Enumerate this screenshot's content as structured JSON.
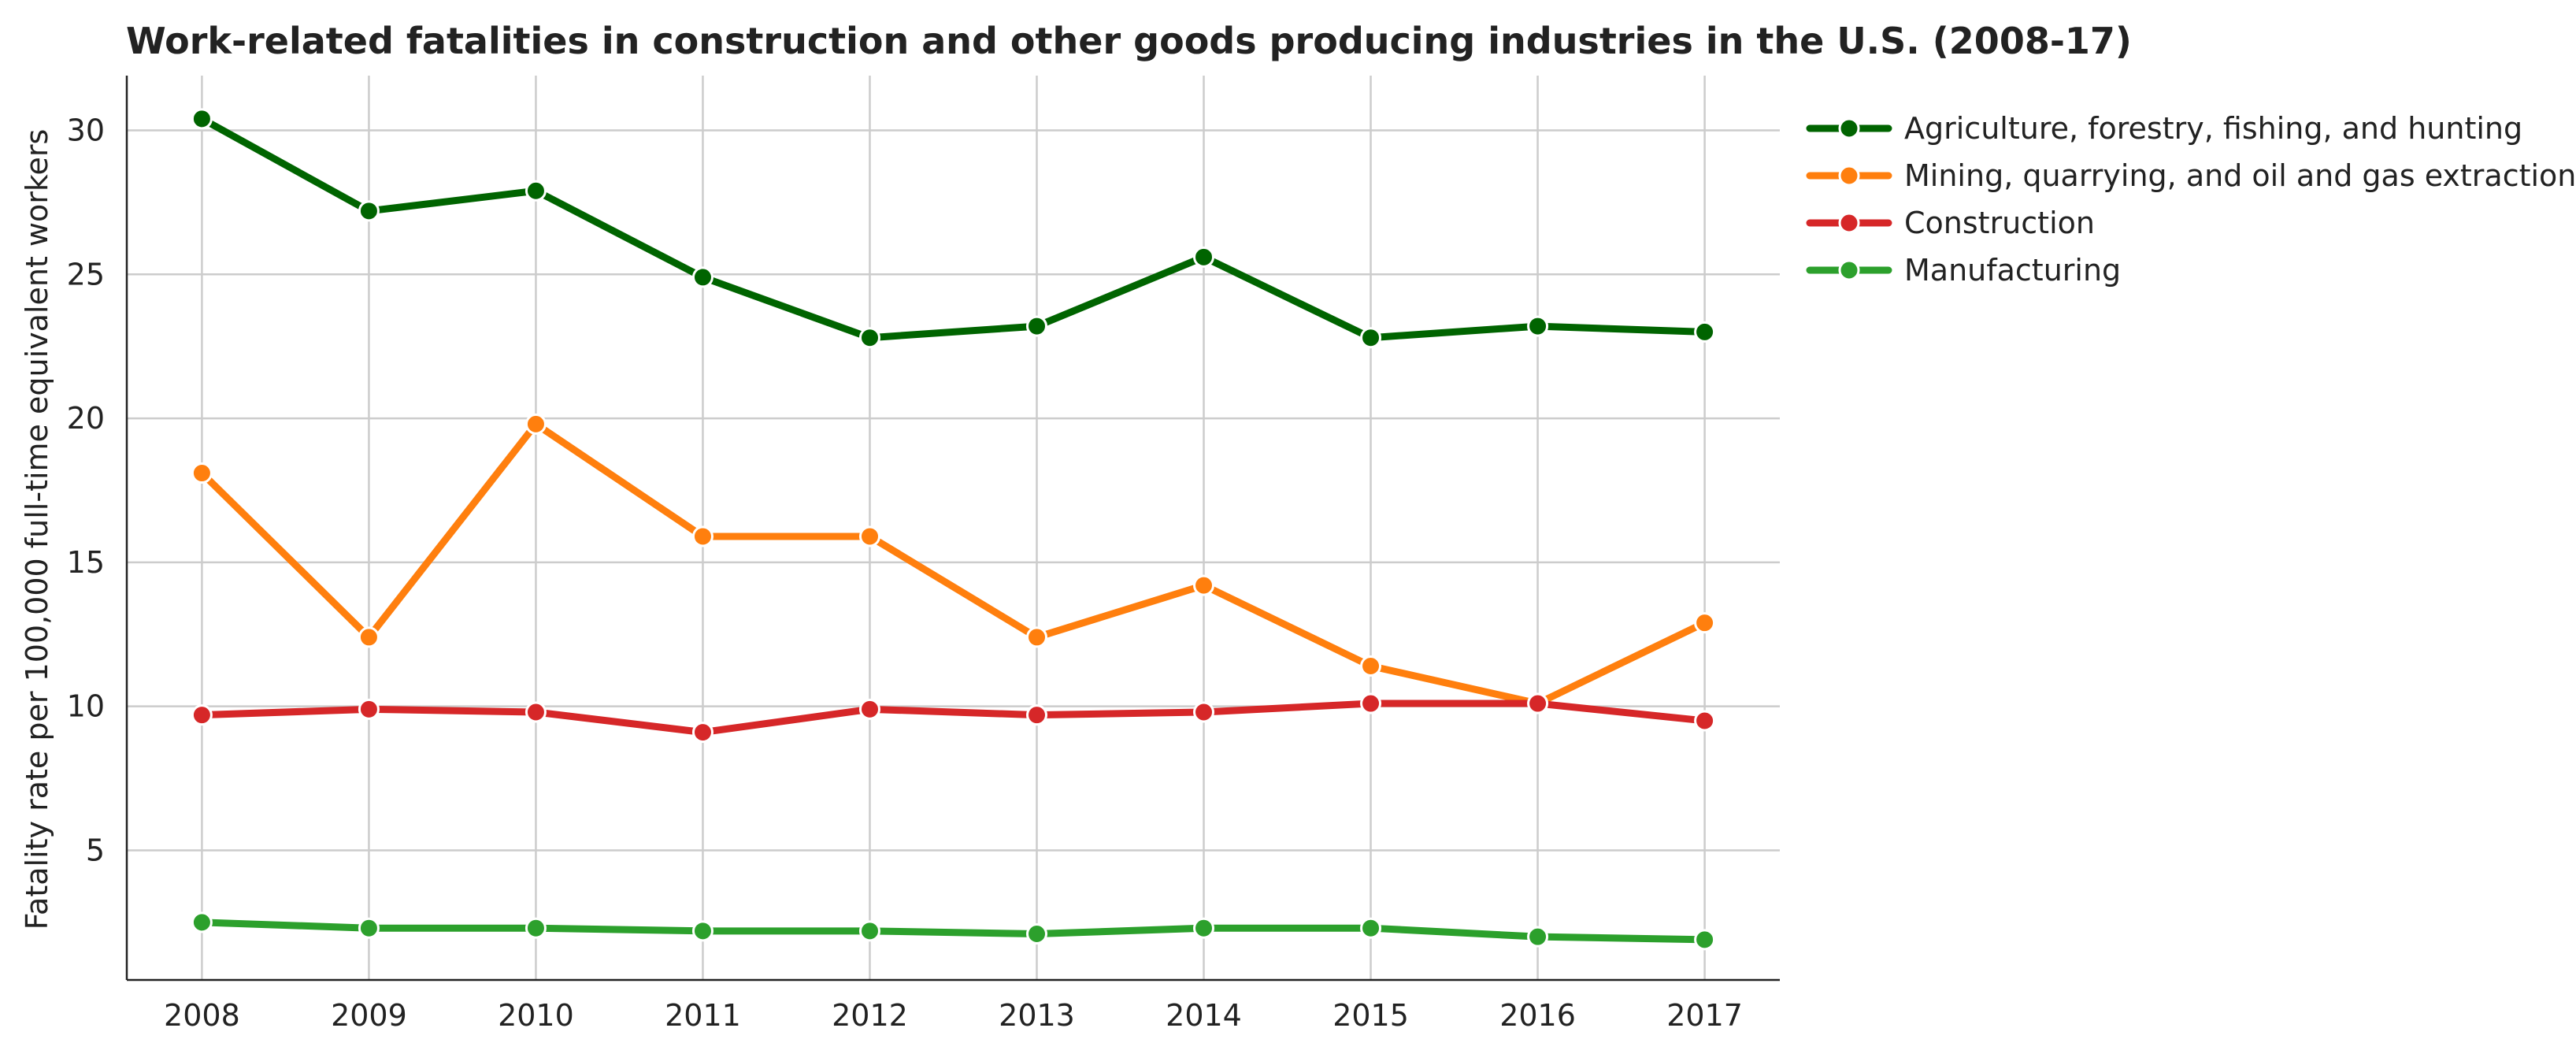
{
  "chart_data": {
    "type": "line",
    "title": "Work-related fatalities in construction and other goods producing industries in the U.S. (2008-17)",
    "xlabel": "",
    "ylabel": "Fatality rate per 100,000 full-time equivalent workers",
    "x": [
      "2008",
      "2009",
      "2010",
      "2011",
      "2012",
      "2013",
      "2014",
      "2015",
      "2016",
      "2017"
    ],
    "xlim": [
      2007.55,
      2017.45
    ],
    "ylim": [
      0.5,
      31.9
    ],
    "yticks": [
      5,
      10,
      15,
      20,
      25,
      30
    ],
    "grid": true,
    "legend_position": "outside-right-top",
    "series": [
      {
        "name": "Agriculture, forestry, fishing, and hunting",
        "color": "#006400",
        "values": [
          30.4,
          27.2,
          27.9,
          24.9,
          22.8,
          23.2,
          25.6,
          22.8,
          23.2,
          23.0
        ]
      },
      {
        "name": "Mining, quarrying, and oil and gas extraction",
        "color": "#ff7f0e",
        "values": [
          18.1,
          12.4,
          19.8,
          15.9,
          15.9,
          12.4,
          14.2,
          11.4,
          10.1,
          12.9
        ]
      },
      {
        "name": "Construction",
        "color": "#d62728",
        "values": [
          9.7,
          9.9,
          9.8,
          9.1,
          9.9,
          9.7,
          9.8,
          10.1,
          10.1,
          9.5
        ]
      },
      {
        "name": "Manufacturing",
        "color": "#2ca02c",
        "values": [
          2.5,
          2.3,
          2.3,
          2.2,
          2.2,
          2.1,
          2.3,
          2.3,
          2.0,
          1.9
        ]
      }
    ]
  }
}
